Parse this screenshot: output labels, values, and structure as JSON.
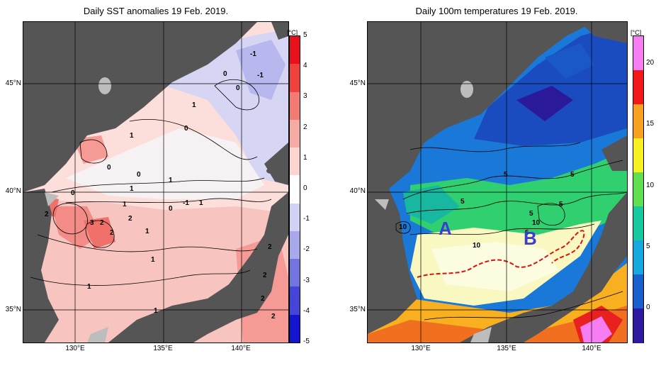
{
  "left_panel": {
    "title": "Daily SST anomalies 19 Feb. 2019.",
    "colorbar": {
      "unit": "[°C]",
      "ticks": [
        "5",
        "4",
        "3",
        "2",
        "1",
        "0",
        "-1",
        "-2",
        "-3",
        "-4",
        "-5"
      ],
      "colors": [
        "#e8101a",
        "#f0413c",
        "#f47a74",
        "#f8aaa4",
        "#fcd4d0",
        "#ffffff",
        "#d2d2f4",
        "#a8a8ec",
        "#7474e0",
        "#4444d8",
        "#1414d0"
      ]
    },
    "contour_labels": [
      "-1",
      "-1",
      "0",
      "0",
      "1",
      "0",
      "1",
      "1",
      "0",
      "0",
      "2",
      "1",
      "1",
      "0",
      "-1",
      "1",
      "2",
      "3",
      "2",
      "2",
      "1",
      "1",
      "2",
      "1",
      "2",
      "2",
      "2",
      "0",
      "1"
    ]
  },
  "right_panel": {
    "title": "Daily 100m temperatures 19 Feb. 2019.",
    "colorbar": {
      "unit": "[°C]",
      "ticks": [
        "20",
        "15",
        "10",
        "5",
        "0"
      ],
      "colors": [
        "#f77ef2",
        "#f01818",
        "#f8a020",
        "#f8f020",
        "#60e050",
        "#18c8a0",
        "#18a8e0",
        "#1860d0",
        "#3018a0"
      ]
    },
    "contour_labels": [
      "5",
      "5",
      "5",
      "5",
      "5",
      "10",
      "10",
      "10",
      "5"
    ],
    "markers": [
      "A",
      "B"
    ]
  },
  "axes": {
    "lat_labels": [
      "45°N",
      "40°N",
      "35°N"
    ],
    "lon_labels": [
      "130°E",
      "135°E",
      "140°E"
    ]
  },
  "colors": {
    "land": "#555555",
    "no_data": "#bdbdbd",
    "grid": "#000000",
    "front_line": "#e01010"
  }
}
